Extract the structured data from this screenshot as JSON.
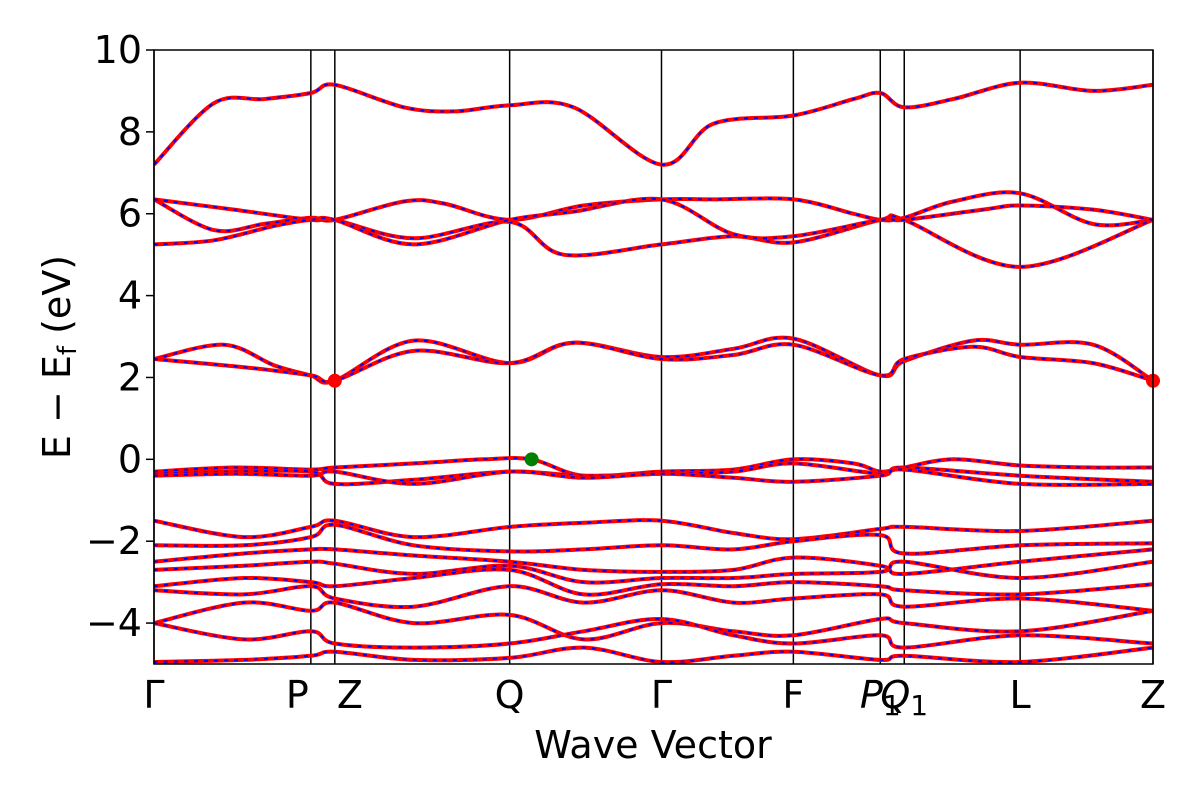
{
  "chart_data": {
    "type": "line",
    "xlabel": "Wave Vector",
    "ylabel": "E − E_f (eV)",
    "ylabel_parts": {
      "main": "E − E",
      "sub": "f",
      "unit": " (eV)"
    },
    "ylim": [
      -5,
      10
    ],
    "yticks": [
      -4,
      -2,
      0,
      2,
      4,
      6,
      8,
      10
    ],
    "ytick_labels": [
      "−4",
      "−2",
      "0",
      "2",
      "4",
      "6",
      "8",
      "10"
    ],
    "xlim": [
      0,
      1000
    ],
    "kpoints": [
      {
        "label": "Γ",
        "x": 0
      },
      {
        "label": "P",
        "x": 157
      },
      {
        "label": "Z",
        "x": 181
      },
      {
        "label": "Q",
        "x": 356
      },
      {
        "label": "Γ",
        "x": 508
      },
      {
        "label": "F",
        "x": 640
      },
      {
        "label": "P",
        "sub": "1",
        "x": 727,
        "italic": true
      },
      {
        "label": "Q",
        "sub": "1",
        "x": 751,
        "italic": true
      },
      {
        "label": "L",
        "x": 867
      },
      {
        "label": "Z",
        "x": 1000
      }
    ],
    "band_color": "#ff0000",
    "overlay_color": "#0000ff",
    "markers": [
      {
        "name": "cbm",
        "x": 181,
        "y": 1.92,
        "color": "#ff0000"
      },
      {
        "name": "cbm",
        "x": 1000,
        "y": 1.92,
        "color": "#ff0000"
      },
      {
        "name": "vbm",
        "x": 378,
        "y": 0.0,
        "color": "#008000"
      }
    ],
    "series": [
      {
        "x": [
          0,
          60,
          110,
          157,
          181,
          250,
          300,
          356,
          420,
          508,
          560,
          640,
          700,
          727,
          751,
          800,
          867,
          940,
          1000
        ],
        "y": [
          7.2,
          8.7,
          8.8,
          8.95,
          9.15,
          8.6,
          8.5,
          8.65,
          8.6,
          7.2,
          8.2,
          8.4,
          8.8,
          8.95,
          8.6,
          8.8,
          9.2,
          9.0,
          9.15
        ]
      },
      {
        "x": [
          0,
          60,
          110,
          157,
          181,
          250,
          290,
          356,
          430,
          508,
          560,
          640,
          700,
          727,
          751,
          800,
          867,
          940,
          1000
        ],
        "y": [
          6.35,
          5.6,
          5.75,
          5.9,
          5.85,
          6.3,
          6.25,
          5.85,
          6.2,
          6.35,
          6.35,
          6.35,
          6.0,
          5.85,
          5.9,
          6.3,
          6.5,
          5.75,
          5.85
        ]
      },
      {
        "x": [
          0,
          80,
          157,
          181,
          260,
          356,
          410,
          508,
          580,
          640,
          727,
          751,
          867,
          1000
        ],
        "y": [
          6.35,
          6.1,
          5.85,
          5.85,
          5.4,
          5.8,
          5.0,
          5.25,
          5.45,
          5.3,
          5.85,
          5.85,
          4.7,
          5.85
        ]
      },
      {
        "x": [
          0,
          60,
          120,
          157,
          181,
          260,
          356,
          420,
          508,
          580,
          640,
          727,
          751,
          830,
          867,
          940,
          1000
        ],
        "y": [
          5.25,
          5.35,
          5.7,
          5.85,
          5.85,
          5.25,
          5.85,
          6.05,
          6.35,
          5.5,
          5.45,
          5.85,
          5.85,
          6.1,
          6.2,
          6.1,
          5.85
        ]
      },
      {
        "x": [
          0,
          70,
          120,
          157,
          181,
          260,
          356,
          420,
          508,
          580,
          640,
          727,
          751,
          820,
          867,
          940,
          1000
        ],
        "y": [
          2.45,
          2.8,
          2.3,
          2.05,
          1.92,
          2.9,
          2.35,
          2.85,
          2.5,
          2.7,
          2.95,
          2.05,
          2.4,
          2.9,
          2.8,
          2.8,
          1.92
        ]
      },
      {
        "x": [
          0,
          90,
          157,
          181,
          260,
          356,
          420,
          508,
          580,
          640,
          727,
          751,
          820,
          867,
          940,
          1000
        ],
        "y": [
          2.45,
          2.25,
          2.05,
          1.92,
          2.65,
          2.35,
          2.85,
          2.45,
          2.55,
          2.8,
          2.05,
          2.45,
          2.75,
          2.5,
          2.35,
          1.92
        ]
      },
      {
        "x": [
          0,
          80,
          157,
          181,
          260,
          330,
          378,
          430,
          508,
          580,
          640,
          700,
          727,
          751,
          800,
          867,
          940,
          1000
        ],
        "y": [
          -0.3,
          -0.2,
          -0.25,
          -0.2,
          -0.1,
          0.0,
          0.0,
          -0.4,
          -0.3,
          -0.25,
          0.0,
          -0.1,
          -0.3,
          -0.2,
          0.0,
          -0.15,
          -0.2,
          -0.2
        ]
      },
      {
        "x": [
          0,
          80,
          157,
          181,
          260,
          356,
          430,
          508,
          580,
          640,
          727,
          751,
          867,
          1000
        ],
        "y": [
          -0.35,
          -0.3,
          -0.3,
          -0.6,
          -0.5,
          -0.3,
          -0.4,
          -0.35,
          -0.3,
          -0.1,
          -0.35,
          -0.2,
          -0.4,
          -0.55
        ]
      },
      {
        "x": [
          0,
          80,
          157,
          181,
          260,
          356,
          430,
          508,
          580,
          640,
          727,
          751,
          867,
          1000
        ],
        "y": [
          -0.4,
          -0.35,
          -0.4,
          -0.3,
          -0.6,
          -0.3,
          -0.45,
          -0.35,
          -0.45,
          -0.55,
          -0.4,
          -0.25,
          -0.6,
          -0.6
        ]
      },
      {
        "x": [
          0,
          90,
          157,
          181,
          260,
          356,
          430,
          508,
          580,
          640,
          727,
          751,
          867,
          1000
        ],
        "y": [
          -1.5,
          -1.9,
          -1.65,
          -1.5,
          -1.9,
          -1.65,
          -1.55,
          -1.5,
          -1.8,
          -1.95,
          -1.7,
          -1.65,
          -1.75,
          -1.5
        ]
      },
      {
        "x": [
          0,
          90,
          157,
          181,
          260,
          356,
          430,
          508,
          580,
          640,
          727,
          751,
          867,
          1000
        ],
        "y": [
          -2.1,
          -2.1,
          -1.9,
          -1.6,
          -2.1,
          -2.25,
          -2.2,
          -2.1,
          -2.2,
          -2.0,
          -1.85,
          -2.3,
          -2.1,
          -2.05
        ]
      },
      {
        "x": [
          0,
          90,
          157,
          181,
          260,
          356,
          430,
          508,
          580,
          640,
          727,
          751,
          867,
          1000
        ],
        "y": [
          -2.5,
          -2.3,
          -2.2,
          -2.2,
          -2.35,
          -2.5,
          -2.7,
          -2.75,
          -2.7,
          -2.4,
          -2.6,
          -2.8,
          -2.5,
          -2.2
        ]
      },
      {
        "x": [
          0,
          90,
          157,
          181,
          260,
          356,
          430,
          508,
          580,
          640,
          727,
          751,
          867,
          1000
        ],
        "y": [
          -2.7,
          -2.6,
          -2.5,
          -2.55,
          -2.8,
          -2.6,
          -3.0,
          -2.9,
          -2.9,
          -2.8,
          -2.75,
          -2.5,
          -2.9,
          -2.5
        ]
      },
      {
        "x": [
          0,
          90,
          157,
          181,
          260,
          356,
          430,
          508,
          580,
          640,
          727,
          751,
          867,
          1000
        ],
        "y": [
          -3.1,
          -2.9,
          -3.0,
          -3.1,
          -2.9,
          -2.7,
          -3.3,
          -3.05,
          -3.1,
          -3.0,
          -3.1,
          -3.2,
          -3.3,
          -3.05
        ]
      },
      {
        "x": [
          0,
          90,
          157,
          181,
          260,
          356,
          430,
          508,
          580,
          640,
          727,
          751,
          867,
          1000
        ],
        "y": [
          -3.2,
          -3.3,
          -3.1,
          -3.4,
          -3.6,
          -3.1,
          -3.5,
          -3.2,
          -3.5,
          -3.4,
          -3.3,
          -3.6,
          -3.4,
          -3.7
        ]
      },
      {
        "x": [
          0,
          90,
          157,
          181,
          260,
          356,
          430,
          508,
          580,
          640,
          727,
          751,
          867,
          1000
        ],
        "y": [
          -4.0,
          -3.5,
          -3.7,
          -3.5,
          -4.0,
          -3.8,
          -4.4,
          -4.0,
          -4.2,
          -4.3,
          -3.9,
          -4.0,
          -4.2,
          -3.7
        ]
      },
      {
        "x": [
          0,
          90,
          157,
          181,
          260,
          356,
          430,
          508,
          580,
          640,
          727,
          751,
          867,
          1000
        ],
        "y": [
          -4.0,
          -4.4,
          -4.2,
          -4.5,
          -4.6,
          -4.5,
          -4.2,
          -3.9,
          -4.3,
          -4.5,
          -4.3,
          -4.6,
          -4.3,
          -4.5
        ]
      },
      {
        "x": [
          0,
          90,
          157,
          181,
          260,
          356,
          430,
          508,
          580,
          640,
          727,
          751,
          867,
          1000
        ],
        "y": [
          -4.95,
          -4.9,
          -4.8,
          -4.7,
          -4.9,
          -4.85,
          -4.6,
          -4.95,
          -4.8,
          -4.7,
          -4.9,
          -4.8,
          -4.95,
          -4.6
        ]
      }
    ]
  }
}
